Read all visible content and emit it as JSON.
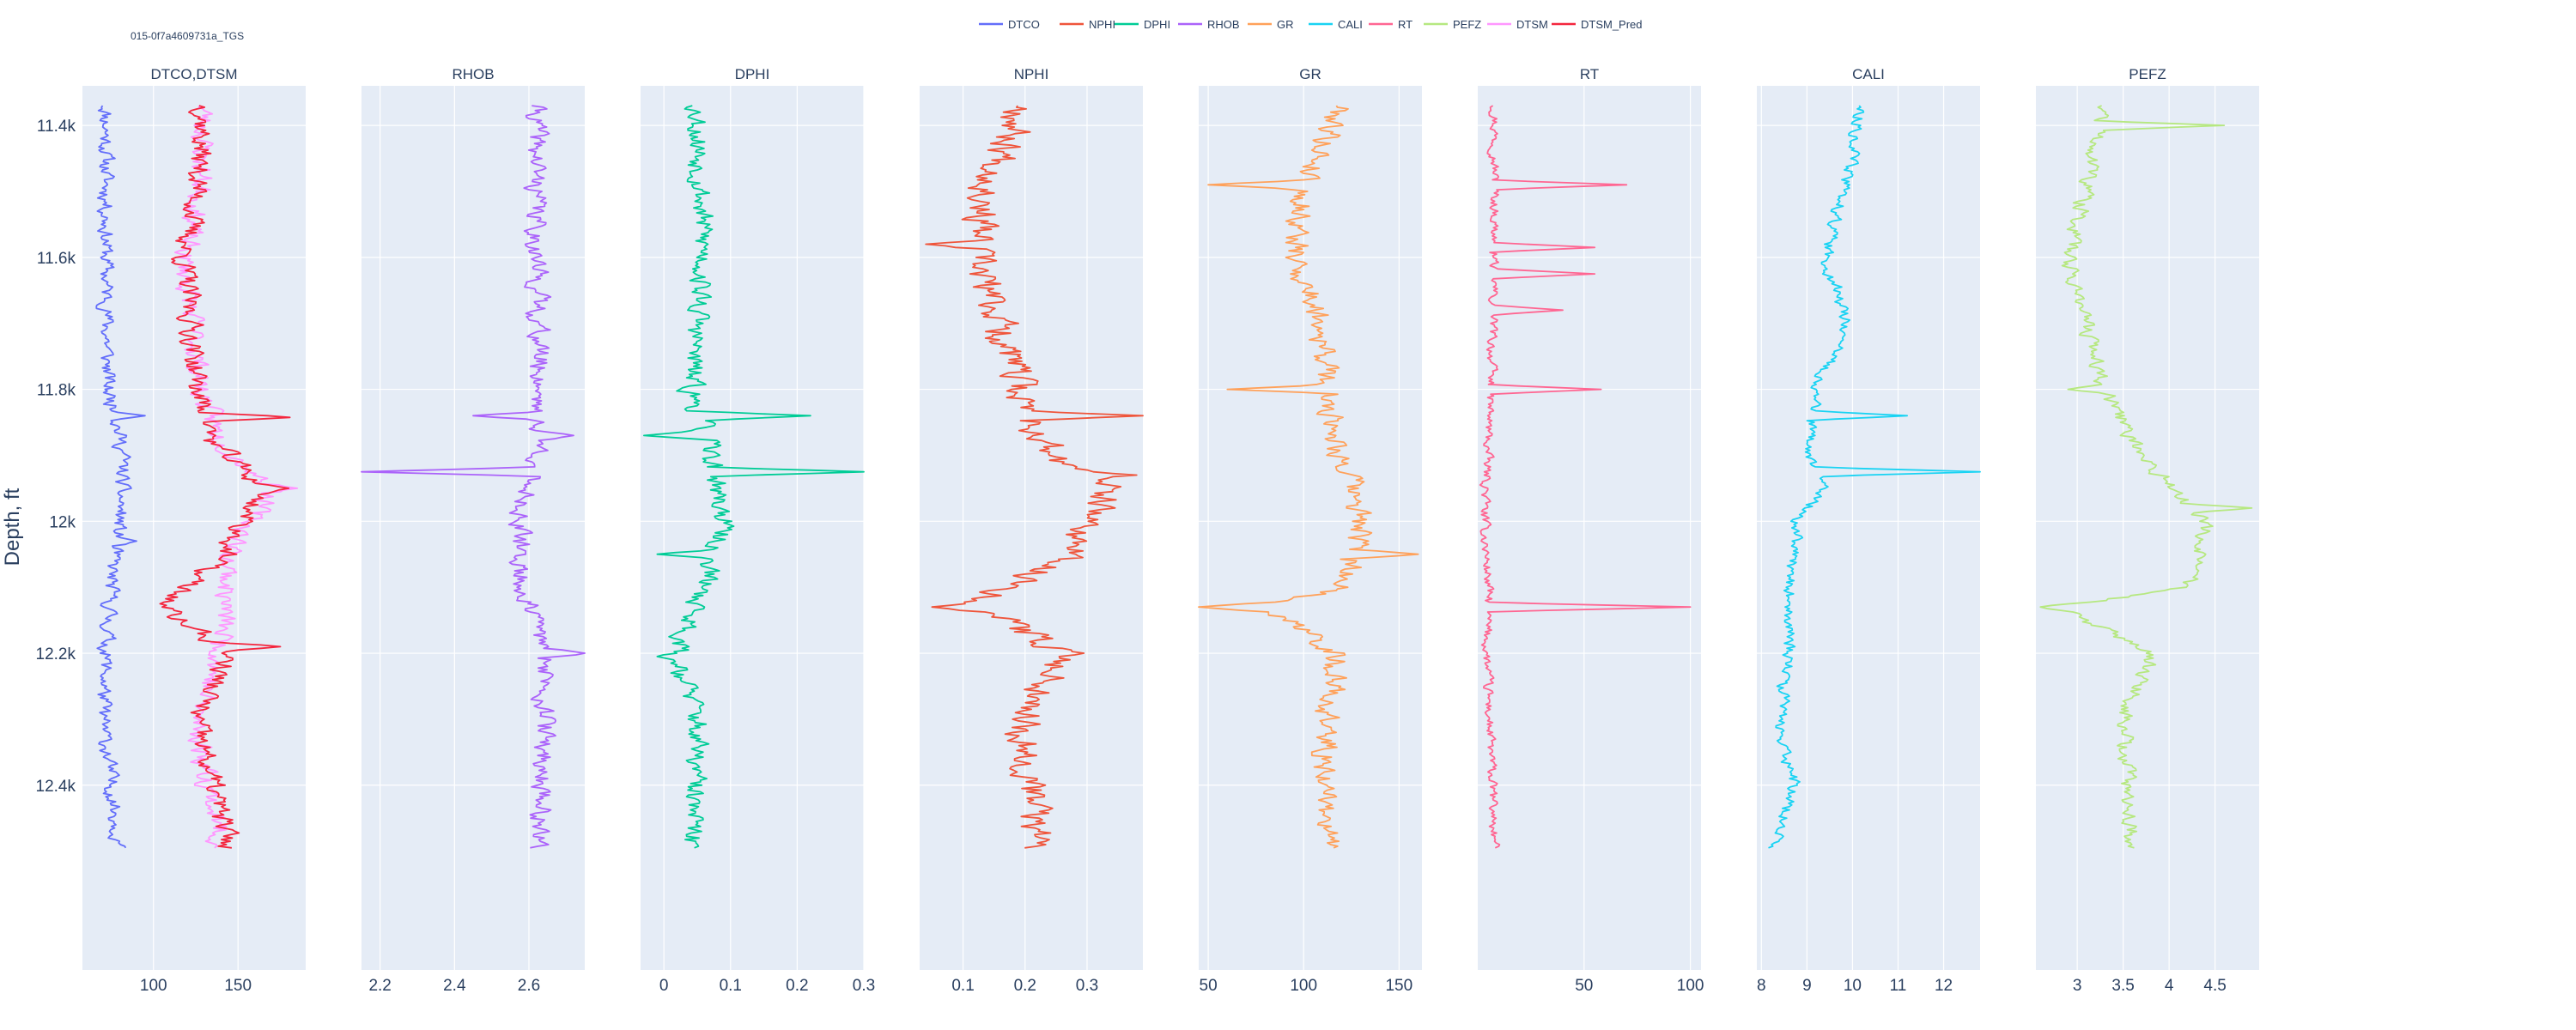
{
  "well_name": "015-0f7a4609731a_TGS",
  "y_axis_title": "Depth, ft",
  "legend": [
    {
      "label": "DTCO",
      "color": "#636efa"
    },
    {
      "label": "NPHI",
      "color": "#ef553b"
    },
    {
      "label": "DPHI",
      "color": "#00cc96"
    },
    {
      "label": "RHOB",
      "color": "#ab63fa"
    },
    {
      "label": "GR",
      "color": "#ffa15a"
    },
    {
      "label": "CALI",
      "color": "#19d3f3"
    },
    {
      "label": "RT",
      "color": "#ff6692"
    },
    {
      "label": "PEFZ",
      "color": "#b6e880"
    },
    {
      "label": "DTSM",
      "color": "#ff97ff"
    },
    {
      "label": "DTSM_Pred",
      "color": "#f4263e"
    }
  ],
  "chart_data": {
    "type": "line",
    "orientation": "vertical-depth",
    "y_axis": {
      "title": "Depth, ft",
      "range": [
        12680,
        11340
      ],
      "reversed": true,
      "ticks": [
        11400,
        11600,
        11800,
        12000,
        12200,
        12400
      ],
      "tick_labels": [
        "11.4k",
        "11.6k",
        "11.8k",
        "12k",
        "12.2k",
        "12.4k"
      ]
    },
    "depth_range": [
      11370,
      12495
    ],
    "grid": true,
    "legend_position": "top-center",
    "tracks": [
      {
        "title": "DTCO,DTSM",
        "xlim": [
          58,
          190
        ],
        "ticks": [
          100,
          150
        ],
        "tick_labels": [
          "100",
          "150"
        ],
        "curves": [
          {
            "name": "DTCO",
            "color": "#636efa",
            "base": 70,
            "amp": 4,
            "seed": 11,
            "profile": [
              [
                11370,
                72
              ],
              [
                11600,
                72
              ],
              [
                11800,
                73
              ],
              [
                11840,
                78
              ],
              [
                11900,
                82
              ],
              [
                12000,
                80
              ],
              [
                12060,
                76
              ],
              [
                12200,
                72
              ],
              [
                12300,
                70
              ],
              [
                12495,
                80
              ]
            ],
            "spikes": [
              [
                11840,
                95
              ],
              [
                12030,
                90
              ]
            ]
          },
          {
            "name": "DTSM",
            "color": "#ff97ff",
            "amp": 6,
            "seed": 23,
            "profile": [
              [
                11370,
                130
              ],
              [
                11500,
                128
              ],
              [
                11600,
                118
              ],
              [
                11800,
                128
              ],
              [
                11880,
                140
              ],
              [
                11950,
                170
              ],
              [
                12050,
                145
              ],
              [
                12200,
                140
              ],
              [
                12300,
                125
              ],
              [
                12495,
                140
              ]
            ],
            "spikes": [
              [
                11950,
                185
              ]
            ]
          },
          {
            "name": "DTSM_Pred",
            "color": "#f4263e",
            "amp": 6,
            "seed": 37,
            "profile": [
              [
                11370,
                130
              ],
              [
                11500,
                126
              ],
              [
                11600,
                118
              ],
              [
                11800,
                126
              ],
              [
                11880,
                135
              ],
              [
                11950,
                165
              ],
              [
                12050,
                142
              ],
              [
                12130,
                105
              ],
              [
                12200,
                145
              ],
              [
                12300,
                125
              ],
              [
                12495,
                145
              ]
            ],
            "spikes": [
              [
                11842,
                185
              ],
              [
                11950,
                180
              ],
              [
                12190,
                175
              ]
            ]
          }
        ]
      },
      {
        "title": "RHOB",
        "xlim": [
          2.15,
          2.75
        ],
        "ticks": [
          2.2,
          2.4,
          2.6
        ],
        "tick_labels": [
          "2.2",
          "2.4",
          "2.6"
        ],
        "curves": [
          {
            "name": "RHOB",
            "color": "#ab63fa",
            "amp": 0.025,
            "seed": 41,
            "profile": [
              [
                11370,
                2.62
              ],
              [
                11600,
                2.62
              ],
              [
                11800,
                2.63
              ],
              [
                11900,
                2.63
              ],
              [
                12000,
                2.57
              ],
              [
                12100,
                2.58
              ],
              [
                12200,
                2.65
              ],
              [
                12495,
                2.63
              ]
            ],
            "spikes": [
              [
                11840,
                2.45
              ],
              [
                11925,
                2.15
              ],
              [
                12200,
                2.75
              ],
              [
                11870,
                2.72
              ]
            ]
          }
        ]
      },
      {
        "title": "DPHI",
        "xlim": [
          -0.035,
          0.3
        ],
        "ticks": [
          0,
          0.1,
          0.2,
          0.3
        ],
        "tick_labels": [
          "0",
          "0.1",
          "0.2",
          "0.3"
        ],
        "curves": [
          {
            "name": "DPHI",
            "color": "#00cc96",
            "amp": 0.015,
            "seed": 53,
            "profile": [
              [
                11370,
                0.05
              ],
              [
                11600,
                0.06
              ],
              [
                11800,
                0.04
              ],
              [
                11900,
                0.07
              ],
              [
                12000,
                0.09
              ],
              [
                12100,
                0.06
              ],
              [
                12200,
                0.02
              ],
              [
                12300,
                0.05
              ],
              [
                12495,
                0.04
              ]
            ],
            "spikes": [
              [
                11840,
                0.22
              ],
              [
                11870,
                -0.03
              ],
              [
                11925,
                0.3
              ],
              [
                12050,
                -0.01
              ],
              [
                12205,
                -0.01
              ]
            ]
          }
        ]
      },
      {
        "title": "NPHI",
        "xlim": [
          0.03,
          0.39
        ],
        "ticks": [
          0.1,
          0.2,
          0.3
        ],
        "tick_labels": [
          "0.1",
          "0.2",
          "0.3"
        ],
        "curves": [
          {
            "name": "NPHI",
            "color": "#ef553b",
            "amp": 0.025,
            "seed": 67,
            "profile": [
              [
                11370,
                0.2
              ],
              [
                11500,
                0.14
              ],
              [
                11600,
                0.12
              ],
              [
                11700,
                0.16
              ],
              [
                11800,
                0.19
              ],
              [
                11900,
                0.24
              ],
              [
                11950,
                0.33
              ],
              [
                12050,
                0.27
              ],
              [
                12130,
                0.12
              ],
              [
                12200,
                0.27
              ],
              [
                12300,
                0.2
              ],
              [
                12495,
                0.22
              ]
            ],
            "spikes": [
              [
                11580,
                0.04
              ],
              [
                11840,
                0.39
              ],
              [
                11930,
                0.38
              ],
              [
                12130,
                0.05
              ]
            ]
          }
        ]
      },
      {
        "title": "GR",
        "xlim": [
          45,
          162
        ],
        "ticks": [
          50,
          100,
          150
        ],
        "tick_labels": [
          "50",
          "100",
          "150"
        ],
        "curves": [
          {
            "name": "GR",
            "color": "#ffa15a",
            "amp": 6,
            "seed": 79,
            "profile": [
              [
                11370,
                120
              ],
              [
                11500,
                100
              ],
              [
                11600,
                95
              ],
              [
                11700,
                110
              ],
              [
                11800,
                112
              ],
              [
                11900,
                120
              ],
              [
                12000,
                130
              ],
              [
                12100,
                122
              ],
              [
                12130,
                80
              ],
              [
                12200,
                118
              ],
              [
                12300,
                112
              ],
              [
                12495,
                112
              ]
            ],
            "spikes": [
              [
                11490,
                50
              ],
              [
                11800,
                60
              ],
              [
                12050,
                160
              ],
              [
                12130,
                45
              ]
            ]
          }
        ]
      },
      {
        "title": "RT",
        "xlim": [
          0,
          105
        ],
        "ticks": [
          50,
          100
        ],
        "tick_labels": [
          "50",
          "100"
        ],
        "curves": [
          {
            "name": "RT",
            "color": "#ff6692",
            "amp": 2,
            "seed": 97,
            "profile": [
              [
                11370,
                8
              ],
              [
                11600,
                8
              ],
              [
                11800,
                6
              ],
              [
                12000,
                3
              ],
              [
                12100,
                5
              ],
              [
                12200,
                4
              ],
              [
                12495,
                8
              ]
            ],
            "spikes": [
              [
                11490,
                70
              ],
              [
                11585,
                55
              ],
              [
                11625,
                55
              ],
              [
                11680,
                40
              ],
              [
                11800,
                58
              ],
              [
                12130,
                100
              ]
            ]
          }
        ]
      },
      {
        "title": "CALI",
        "xlim": [
          7.9,
          12.8
        ],
        "ticks": [
          8,
          9,
          10,
          11,
          12
        ],
        "tick_labels": [
          "8",
          "9",
          "10",
          "11",
          "12"
        ],
        "curves": [
          {
            "name": "CALI",
            "color": "#19d3f3",
            "amp": 0.12,
            "seed": 113,
            "profile": [
              [
                11370,
                10.2
              ],
              [
                11450,
                10.0
              ],
              [
                11500,
                9.8
              ],
              [
                11600,
                9.4
              ],
              [
                11700,
                9.9
              ],
              [
                11800,
                9.2
              ],
              [
                11900,
                9.0
              ],
              [
                11950,
                9.4
              ],
              [
                12000,
                8.8
              ],
              [
                12100,
                8.6
              ],
              [
                12200,
                8.6
              ],
              [
                12300,
                8.4
              ],
              [
                12400,
                8.7
              ],
              [
                12495,
                8.3
              ]
            ],
            "spikes": [
              [
                11840,
                11.2
              ],
              [
                11925,
                12.8
              ]
            ]
          }
        ]
      },
      {
        "title": "PEFZ",
        "xlim": [
          2.55,
          4.98
        ],
        "ticks": [
          3,
          3.5,
          4,
          4.5
        ],
        "tick_labels": [
          "3",
          "3.5",
          "4",
          "4.5"
        ],
        "curves": [
          {
            "name": "PEFZ",
            "color": "#b6e880",
            "amp": 0.08,
            "seed": 131,
            "profile": [
              [
                11370,
                3.3
              ],
              [
                11500,
                3.1
              ],
              [
                11600,
                2.9
              ],
              [
                11700,
                3.1
              ],
              [
                11800,
                3.3
              ],
              [
                11900,
                3.7
              ],
              [
                12000,
                4.4
              ],
              [
                12100,
                4.2
              ],
              [
                12130,
                2.8
              ],
              [
                12200,
                3.8
              ],
              [
                12300,
                3.5
              ],
              [
                12495,
                3.6
              ]
            ],
            "spikes": [
              [
                11400,
                4.6
              ],
              [
                11800,
                2.9
              ],
              [
                11980,
                4.9
              ],
              [
                12130,
                2.6
              ]
            ]
          }
        ]
      }
    ]
  }
}
